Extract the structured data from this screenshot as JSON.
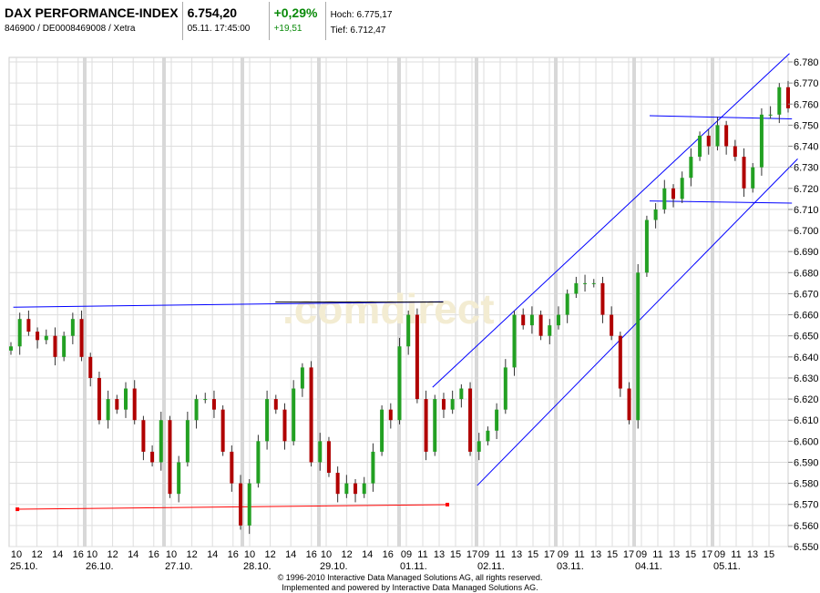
{
  "header": {
    "title": "DAX PERFORMANCE-INDEX",
    "subtitle": "846900 / DE0008469008 / Xetra",
    "price": "6.754,20",
    "datetime": "05.11. 17:45:00",
    "change_pct": "+0,29%",
    "change_abs": "+19,51",
    "high": "Hoch: 6.775,17",
    "low": "Tief: 6.712,47"
  },
  "watermark": ".comdirect",
  "footer": {
    "line1": "© 1996-2010 Interactive Data Managed Solutions AG, all rights reserved.",
    "line2": "Implemented and powered by Interactive Data Managed Solutions AG."
  },
  "colors": {
    "up": "#22a022",
    "down": "#b00000",
    "trend": "#0000ff",
    "support": "#ff0000",
    "grid": "#dddddd"
  },
  "chart_data": {
    "type": "candlestick",
    "ylim": [
      6550,
      6780
    ],
    "y_ticks": [
      "6.780",
      "6.770",
      "6.760",
      "6.750",
      "6.740",
      "6.730",
      "6.720",
      "6.710",
      "6.700",
      "6.690",
      "6.680",
      "6.670",
      "6.660",
      "6.650",
      "6.640",
      "6.630",
      "6.620",
      "6.610",
      "6.600",
      "6.590",
      "6.580",
      "6.570",
      "6.560",
      "6.550"
    ],
    "days": [
      {
        "label": "25.10.",
        "ticks": [
          "10",
          "12",
          "14",
          "16"
        ]
      },
      {
        "label": "26.10.",
        "ticks": [
          "10",
          "12",
          "14",
          "16"
        ]
      },
      {
        "label": "27.10.",
        "ticks": [
          "10",
          "12",
          "14",
          "16"
        ]
      },
      {
        "label": "28.10.",
        "ticks": [
          "10",
          "12",
          "14",
          "16"
        ]
      },
      {
        "label": "29.10.",
        "ticks": [
          "10",
          "12",
          "14",
          "16"
        ]
      },
      {
        "label": "01.11.",
        "ticks": [
          "09",
          "11",
          "13",
          "15",
          "17"
        ]
      },
      {
        "label": "02.11.",
        "ticks": [
          "09",
          "11",
          "13",
          "15",
          "17"
        ]
      },
      {
        "label": "03.11.",
        "ticks": [
          "09",
          "11",
          "13",
          "15",
          "17"
        ]
      },
      {
        "label": "04.11.",
        "ticks": [
          "09",
          "11",
          "13",
          "15",
          "17"
        ]
      },
      {
        "label": "05.11.",
        "ticks": [
          "09",
          "11",
          "13",
          "15"
        ]
      }
    ],
    "closes": [
      6645,
      6658,
      6652,
      6648,
      6650,
      6640,
      6650,
      6658,
      6640,
      6630,
      6610,
      6620,
      6615,
      6625,
      6610,
      6595,
      6590,
      6610,
      6575,
      6590,
      6610,
      6620,
      6620,
      6615,
      6595,
      6580,
      6560,
      6580,
      6600,
      6620,
      6615,
      6600,
      6625,
      6635,
      6590,
      6600,
      6585,
      6575,
      6580,
      6575,
      6580,
      6595,
      6615,
      6610,
      6645,
      6660,
      6620,
      6595,
      6620,
      6615,
      6620,
      6625,
      6595,
      6600,
      6605,
      6615,
      6635,
      6660,
      6655,
      6660,
      6650,
      6655,
      6660,
      6670,
      6675,
      6675,
      6675,
      6660,
      6650,
      6625,
      6610,
      6680,
      6705,
      6710,
      6720,
      6715,
      6725,
      6735,
      6745,
      6740,
      6750,
      6740,
      6735,
      6720,
      6730,
      6755,
      6755,
      6768,
      6758
    ],
    "lines": [
      {
        "color": "trend",
        "from": [
          "25.10.",
          9.7,
          6663.6
        ],
        "to": [
          "01.11.",
          13.5,
          6666.2
        ]
      },
      {
        "color": "black",
        "from": [
          "28.10.",
          12.5,
          6666
        ],
        "to": [
          "01.11.",
          13.5,
          6666
        ]
      },
      {
        "color": "support",
        "from": [
          "25.10.",
          10.1,
          6567.7
        ],
        "to": [
          "01.11.",
          14,
          6569.9
        ]
      },
      {
        "color": "trend",
        "from": [
          "01.11.",
          12.2,
          6625.6
        ],
        "to": [
          "05.11.",
          17.5,
          6784
        ]
      },
      {
        "color": "trend",
        "from": [
          "02.11.",
          8.2,
          6579
        ],
        "to": [
          "05.11.",
          18.5,
          6734
        ]
      },
      {
        "color": "trend",
        "from": [
          "04.11.",
          10,
          6754.5
        ],
        "to": [
          "05.11.",
          17.8,
          6753
        ]
      },
      {
        "color": "trend",
        "from": [
          "04.11.",
          10,
          6714
        ],
        "to": [
          "05.11.",
          17.8,
          6713
        ]
      }
    ]
  }
}
